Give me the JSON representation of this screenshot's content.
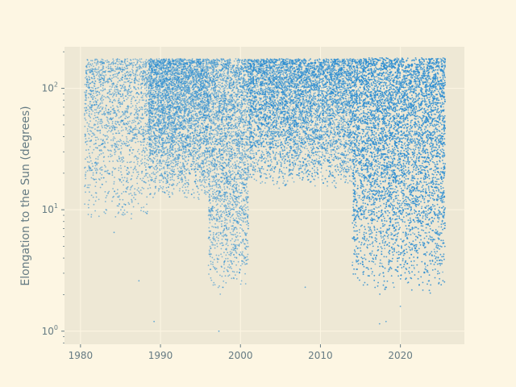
{
  "chart_data": {
    "type": "scatter",
    "title": "",
    "xlabel": "",
    "ylabel": "Elongation to the Sun (degrees)",
    "xscale": "linear",
    "yscale": "log",
    "xlim": [
      1978,
      2028
    ],
    "ylim": [
      0.78,
      220
    ],
    "x_ticks": [
      1980,
      1990,
      2000,
      2010,
      2020
    ],
    "x_tick_labels": [
      "1980",
      "1990",
      "2000",
      "2010",
      "2020"
    ],
    "y_ticks": [
      1,
      10,
      100
    ],
    "y_tick_labels": [
      "10",
      "10",
      "10"
    ],
    "y_tick_exponents": [
      "0",
      "1",
      "2"
    ],
    "grid": true,
    "legend": "none",
    "series": [
      {
        "marker_color": "#268bd2",
        "point_count": "dense (many thousands)",
        "density_profile": [
          {
            "x_range": [
              1980.5,
              1988.5
            ],
            "y_range": [
              8,
              175
            ],
            "density": "sparse"
          },
          {
            "x_range": [
              1988.5,
              1996
            ],
            "y_range": [
              12,
              175
            ],
            "density": "dense"
          },
          {
            "x_range": [
              1996,
              2001
            ],
            "y_range": [
              2,
              175
            ],
            "density": "dense"
          },
          {
            "x_range": [
              2001,
              2014
            ],
            "y_range": [
              15,
              175
            ],
            "density": "dense"
          },
          {
            "x_range": [
              2014,
              2025.6
            ],
            "y_range": [
              2,
              178
            ],
            "density": "very dense"
          }
        ]
      }
    ],
    "background_color": "#eee8d5",
    "figure_color": "#fdf6e3",
    "grid_color": "#fdf6e3",
    "text_color": "#657b83"
  }
}
